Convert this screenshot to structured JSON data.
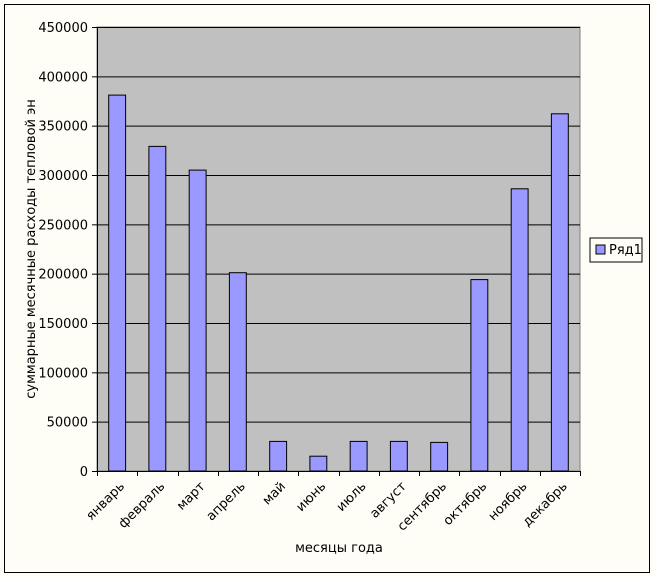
{
  "colors": {
    "background": "#fefef6",
    "plot_area": "#c0c0c0",
    "bar_fill": "#9999ff",
    "bar_stroke": "#000000",
    "gridline": "#000000"
  },
  "chart_data": {
    "type": "bar",
    "categories": [
      "январь",
      "февраль",
      "март",
      "апрель",
      "май",
      "июнь",
      "июль",
      "август",
      "сентябрь",
      "октябрь",
      "ноябрь",
      "декабрь"
    ],
    "series": [
      {
        "name": "Ряд1",
        "values": [
          381000,
          329000,
          305000,
          201000,
          30000,
          15000,
          30000,
          30000,
          29000,
          194000,
          286000,
          362000
        ]
      }
    ],
    "title": "",
    "xlabel": "месяцы года",
    "ylabel": "суммарные месячные расходы тепловой эн",
    "ylim": [
      0,
      450000
    ],
    "yticks": [
      "0",
      "50000",
      "100000",
      "150000",
      "200000",
      "250000",
      "300000",
      "350000",
      "400000",
      "450000"
    ],
    "grid": true,
    "legend_position": "right"
  }
}
